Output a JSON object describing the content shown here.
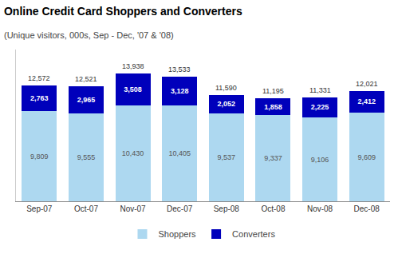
{
  "chart_data": {
    "type": "bar",
    "title": "Online Credit Card Shoppers and Converters",
    "subtitle": "(Unique visitors, 000s, Sep - Dec, '07 & '08)",
    "categories": [
      "Sep-07",
      "Oct-07",
      "Nov-07",
      "Dec-07",
      "Sep-08",
      "Oct-08",
      "Nov-08",
      "Dec-08"
    ],
    "series": [
      {
        "name": "Shoppers",
        "color": "#add8f0",
        "values": [
          9809,
          9555,
          10430,
          10405,
          9537,
          9337,
          9106,
          9609
        ],
        "value_labels": [
          "9,809",
          "9,555",
          "10,430",
          "10,405",
          "9,537",
          "9,337",
          "9,106",
          "9,609"
        ]
      },
      {
        "name": "Converters",
        "color": "#0000bb",
        "values": [
          2763,
          2965,
          3508,
          3128,
          2052,
          1858,
          2225,
          2412
        ],
        "value_labels": [
          "2,763",
          "2,965",
          "3,508",
          "3,128",
          "2,052",
          "1,858",
          "2,225",
          "2,412"
        ]
      }
    ],
    "totals": [
      12572,
      12521,
      13938,
      13533,
      11590,
      11195,
      11331,
      12021
    ],
    "total_labels": [
      "12,572",
      "12,521",
      "13,938",
      "13,533",
      "11,590",
      "11,195",
      "11,331",
      "12,021"
    ],
    "stacked": true,
    "data_labels": true,
    "ylim": [
      0,
      16500
    ],
    "tick_labels": "x",
    "grid": false,
    "legend": "bottom"
  }
}
